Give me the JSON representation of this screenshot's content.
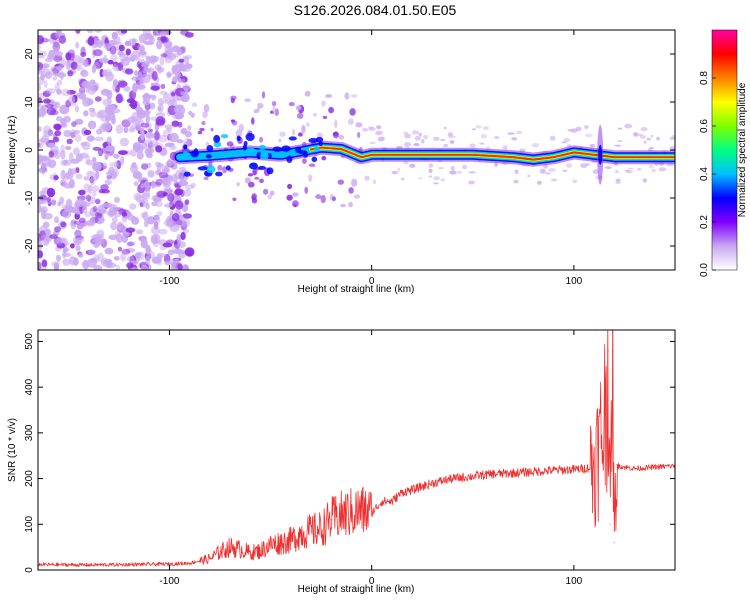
{
  "title": "S126.2026.084.01.50.E05",
  "chart_data": [
    {
      "type": "heatmap",
      "title": "S126.2026.084.01.50.E05",
      "xlabel": "Height of straight line (km)",
      "ylabel": "Frequency (Hz)",
      "xlim": [
        -165,
        150
      ],
      "ylim": [
        -25,
        25
      ],
      "x_ticks": [
        -100,
        0,
        100
      ],
      "x_tick_labels": [
        "-100",
        "0",
        "100"
      ],
      "y_ticks": [
        -20,
        -10,
        0,
        10,
        20
      ],
      "y_tick_labels": [
        "-20",
        "-10",
        "0",
        "10",
        "20"
      ],
      "colorbar": {
        "label": "Normalized spectral amplitude",
        "range": [
          0,
          1
        ],
        "ticks": [
          0,
          0.2,
          0.4,
          0.6,
          0.8
        ],
        "tick_labels": [
          "0.0",
          "0.2",
          "0.4",
          "0.6",
          "0.8"
        ],
        "colormap": [
          "#ffffff",
          "#c8a8f0",
          "#8000ff",
          "#0000ff",
          "#00c0ff",
          "#00ff80",
          "#80ff00",
          "#ffff00",
          "#ff8000",
          "#ff0000",
          "#ff00a0"
        ]
      },
      "ridge": {
        "x": [
          -95,
          -80,
          -60,
          -45,
          -35,
          -25,
          -15,
          -5,
          0,
          10,
          30,
          50,
          70,
          80,
          90,
          100,
          110,
          120,
          150
        ],
        "y": [
          -1.5,
          -1.2,
          -0.5,
          -1.0,
          -0.3,
          0.5,
          0.2,
          -1.5,
          -1.0,
          -1.0,
          -1.0,
          -1.0,
          -1.5,
          -2.0,
          -1.5,
          -0.5,
          -1.0,
          -1.5,
          -1.5
        ]
      }
    },
    {
      "type": "line",
      "xlabel": "Height of straight line (km)",
      "ylabel": "SNR (10 * v/v)",
      "xlim": [
        -165,
        150
      ],
      "ylim": [
        0,
        525
      ],
      "x_ticks": [
        -100,
        0,
        100
      ],
      "x_tick_labels": [
        "-100",
        "0",
        "100"
      ],
      "y_ticks": [
        0,
        100,
        200,
        300,
        400,
        500
      ],
      "y_tick_labels": [
        "0",
        "100",
        "200",
        "300",
        "400",
        "500"
      ],
      "color": "#ee3030",
      "series": [
        {
          "name": "SNR",
          "x": [
            -165,
            -140,
            -120,
            -100,
            -90,
            -80,
            -75,
            -70,
            -65,
            -60,
            -55,
            -50,
            -45,
            -40,
            -35,
            -30,
            -25,
            -20,
            -15,
            -10,
            -5,
            0,
            5,
            10,
            15,
            20,
            30,
            40,
            50,
            60,
            70,
            80,
            90,
            100,
            105,
            110,
            112,
            115,
            117,
            118,
            119,
            120,
            121,
            125,
            130,
            140,
            150
          ],
          "y": [
            12,
            11,
            12,
            13,
            15,
            25,
            40,
            50,
            45,
            38,
            42,
            55,
            60,
            65,
            80,
            85,
            90,
            110,
            120,
            125,
            130,
            125,
            150,
            150,
            170,
            175,
            190,
            200,
            205,
            210,
            212,
            215,
            218,
            220,
            222,
            225,
            260,
            320,
            480,
            100,
            520,
            60,
            230,
            225,
            222,
            225,
            228
          ]
        }
      ]
    }
  ]
}
